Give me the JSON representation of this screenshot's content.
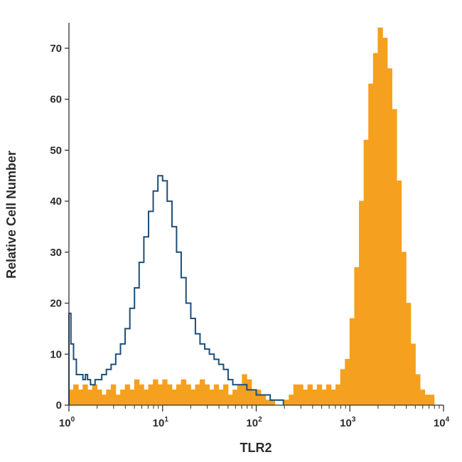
{
  "chart_data": {
    "type": "area",
    "xlabel": "TLR2",
    "ylabel": "Relative Cell Number",
    "x_scale": "log",
    "xlim": [
      1,
      10000
    ],
    "ylim": [
      0,
      75
    ],
    "x_ticks": [
      {
        "base": "10",
        "exp": "0",
        "value": 1
      },
      {
        "base": "10",
        "exp": "1",
        "value": 10
      },
      {
        "base": "10",
        "exp": "2",
        "value": 100
      },
      {
        "base": "10",
        "exp": "3",
        "value": 1000
      },
      {
        "base": "10",
        "exp": "4",
        "value": 10000
      }
    ],
    "y_ticks": [
      "0",
      "10",
      "20",
      "30",
      "40",
      "50",
      "60",
      "70"
    ],
    "grid": false,
    "series": [
      {
        "style": "filled step",
        "color": "#F5A01E",
        "points": [
          [
            1.0,
            3
          ],
          [
            1.12,
            4
          ],
          [
            1.26,
            3
          ],
          [
            1.41,
            4
          ],
          [
            1.58,
            3
          ],
          [
            1.78,
            4
          ],
          [
            2.0,
            3
          ],
          [
            2.24,
            2
          ],
          [
            2.51,
            3
          ],
          [
            2.82,
            4
          ],
          [
            3.16,
            2
          ],
          [
            3.55,
            3
          ],
          [
            3.98,
            4
          ],
          [
            4.47,
            3
          ],
          [
            5.01,
            5
          ],
          [
            5.62,
            4
          ],
          [
            6.31,
            3
          ],
          [
            7.08,
            4
          ],
          [
            7.94,
            5
          ],
          [
            8.91,
            4
          ],
          [
            10.0,
            5
          ],
          [
            11.2,
            4
          ],
          [
            12.6,
            3
          ],
          [
            14.1,
            4
          ],
          [
            15.8,
            5
          ],
          [
            17.8,
            4
          ],
          [
            20.0,
            3
          ],
          [
            22.4,
            4
          ],
          [
            25.1,
            5
          ],
          [
            28.2,
            4
          ],
          [
            31.6,
            3
          ],
          [
            35.5,
            4
          ],
          [
            39.8,
            3
          ],
          [
            44.7,
            4
          ],
          [
            50.1,
            2
          ],
          [
            56.2,
            3
          ],
          [
            63.1,
            4
          ],
          [
            70.8,
            6
          ],
          [
            79.4,
            5
          ],
          [
            89.1,
            3
          ],
          [
            100,
            3
          ],
          [
            112,
            2
          ],
          [
            126,
            1
          ],
          [
            141,
            1
          ],
          [
            158,
            0
          ],
          [
            178,
            0
          ],
          [
            200,
            1
          ],
          [
            224,
            2
          ],
          [
            251,
            4
          ],
          [
            282,
            4
          ],
          [
            316,
            3
          ],
          [
            355,
            4
          ],
          [
            398,
            3
          ],
          [
            447,
            4
          ],
          [
            501,
            3
          ],
          [
            562,
            4
          ],
          [
            631,
            3
          ],
          [
            708,
            4
          ],
          [
            794,
            7
          ],
          [
            891,
            9
          ],
          [
            1000,
            17
          ],
          [
            1122,
            27
          ],
          [
            1259,
            40
          ],
          [
            1413,
            52
          ],
          [
            1585,
            63
          ],
          [
            1778,
            69
          ],
          [
            1995,
            74
          ],
          [
            2239,
            72
          ],
          [
            2512,
            66
          ],
          [
            2818,
            58
          ],
          [
            3162,
            44
          ],
          [
            3548,
            30
          ],
          [
            3981,
            20
          ],
          [
            4467,
            12
          ],
          [
            5012,
            6
          ],
          [
            5623,
            3
          ],
          [
            6310,
            2
          ],
          [
            7079,
            2
          ],
          [
            7943,
            0
          ]
        ]
      },
      {
        "style": "outline step",
        "color": "#1B4F7A",
        "points": [
          [
            1.0,
            18
          ],
          [
            1.05,
            12
          ],
          [
            1.12,
            9
          ],
          [
            1.2,
            6
          ],
          [
            1.3,
            6
          ],
          [
            1.41,
            5
          ],
          [
            1.5,
            6
          ],
          [
            1.58,
            5
          ],
          [
            1.7,
            4
          ],
          [
            1.78,
            4
          ],
          [
            1.9,
            5
          ],
          [
            2.0,
            5
          ],
          [
            2.24,
            6
          ],
          [
            2.51,
            7
          ],
          [
            2.82,
            8
          ],
          [
            3.16,
            10
          ],
          [
            3.55,
            12
          ],
          [
            3.98,
            15
          ],
          [
            4.47,
            19
          ],
          [
            5.01,
            23
          ],
          [
            5.62,
            28
          ],
          [
            6.31,
            33
          ],
          [
            7.08,
            38
          ],
          [
            7.94,
            42
          ],
          [
            8.91,
            45
          ],
          [
            10.0,
            44
          ],
          [
            11.2,
            40
          ],
          [
            12.6,
            35
          ],
          [
            14.1,
            30
          ],
          [
            15.8,
            25
          ],
          [
            17.8,
            20
          ],
          [
            20.0,
            17
          ],
          [
            22.4,
            14
          ],
          [
            25.1,
            12
          ],
          [
            28.2,
            11
          ],
          [
            31.6,
            10
          ],
          [
            35.5,
            9
          ],
          [
            39.8,
            8
          ],
          [
            44.7,
            7
          ],
          [
            50.1,
            5
          ],
          [
            56.2,
            4
          ],
          [
            63.1,
            4
          ],
          [
            70.8,
            4
          ],
          [
            79.4,
            3
          ],
          [
            89.1,
            3
          ],
          [
            100,
            2
          ],
          [
            112,
            2
          ],
          [
            126,
            2
          ],
          [
            141,
            1
          ],
          [
            158,
            1
          ],
          [
            178,
            1
          ],
          [
            195,
            0
          ]
        ]
      }
    ]
  }
}
